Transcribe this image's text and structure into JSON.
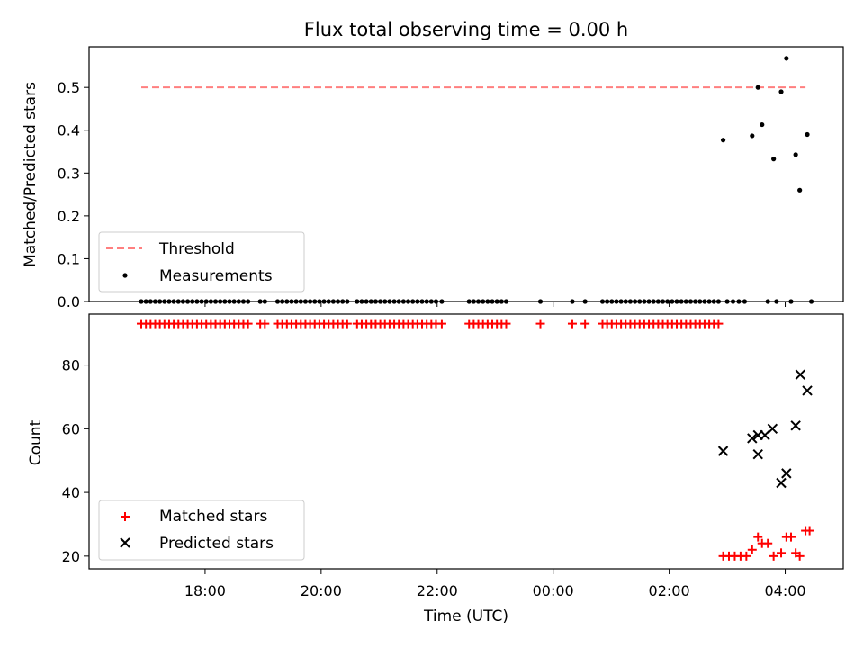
{
  "chart_data": [
    {
      "type": "scatter",
      "title": "Flux total observing time = 0.00 h",
      "ylabel": "Matched/Predicted stars",
      "ylim": [
        0,
        0.595
      ],
      "yticks": [
        0.0,
        0.1,
        0.2,
        0.3,
        0.4,
        0.5
      ],
      "ytick_labels": [
        "0.0",
        "0.1",
        "0.2",
        "0.3",
        "0.4",
        "0.5"
      ],
      "legend_position": "lower-left",
      "threshold": {
        "name": "Threshold",
        "color": "#ff7f7f",
        "style": "dashed",
        "y": 0.5,
        "x_start": 16.9,
        "x_end": 28.35
      },
      "series": [
        {
          "name": "Measurements",
          "color": "#000000",
          "marker": "dot",
          "points": [
            [
              16.9,
              0
            ],
            [
              16.98,
              0
            ],
            [
              17.06,
              0
            ],
            [
              17.14,
              0
            ],
            [
              17.22,
              0
            ],
            [
              17.3,
              0
            ],
            [
              17.38,
              0
            ],
            [
              17.46,
              0
            ],
            [
              17.54,
              0
            ],
            [
              17.62,
              0
            ],
            [
              17.7,
              0
            ],
            [
              17.78,
              0
            ],
            [
              17.86,
              0
            ],
            [
              17.94,
              0
            ],
            [
              18.02,
              0
            ],
            [
              18.1,
              0
            ],
            [
              18.18,
              0
            ],
            [
              18.26,
              0
            ],
            [
              18.34,
              0
            ],
            [
              18.42,
              0
            ],
            [
              18.5,
              0
            ],
            [
              18.58,
              0
            ],
            [
              18.66,
              0
            ],
            [
              18.74,
              0
            ],
            [
              18.95,
              0
            ],
            [
              19.03,
              0
            ],
            [
              19.25,
              0
            ],
            [
              19.33,
              0
            ],
            [
              19.41,
              0
            ],
            [
              19.49,
              0
            ],
            [
              19.57,
              0
            ],
            [
              19.65,
              0
            ],
            [
              19.73,
              0
            ],
            [
              19.81,
              0
            ],
            [
              19.89,
              0
            ],
            [
              19.97,
              0
            ],
            [
              20.05,
              0
            ],
            [
              20.13,
              0
            ],
            [
              20.21,
              0
            ],
            [
              20.29,
              0
            ],
            [
              20.37,
              0
            ],
            [
              20.45,
              0
            ],
            [
              20.62,
              0
            ],
            [
              20.7,
              0
            ],
            [
              20.78,
              0
            ],
            [
              20.86,
              0
            ],
            [
              20.94,
              0
            ],
            [
              21.02,
              0
            ],
            [
              21.1,
              0
            ],
            [
              21.18,
              0
            ],
            [
              21.26,
              0
            ],
            [
              21.34,
              0
            ],
            [
              21.42,
              0
            ],
            [
              21.5,
              0
            ],
            [
              21.58,
              0
            ],
            [
              21.66,
              0
            ],
            [
              21.74,
              0
            ],
            [
              21.82,
              0
            ],
            [
              21.9,
              0
            ],
            [
              21.98,
              0
            ],
            [
              22.08,
              0
            ],
            [
              22.55,
              0
            ],
            [
              22.63,
              0
            ],
            [
              22.71,
              0
            ],
            [
              22.79,
              0
            ],
            [
              22.87,
              0
            ],
            [
              22.95,
              0
            ],
            [
              23.03,
              0
            ],
            [
              23.11,
              0
            ],
            [
              23.19,
              0
            ],
            [
              23.78,
              0
            ],
            [
              24.33,
              0
            ],
            [
              24.55,
              0
            ],
            [
              24.85,
              0
            ],
            [
              24.93,
              0
            ],
            [
              25.01,
              0
            ],
            [
              25.09,
              0
            ],
            [
              25.17,
              0
            ],
            [
              25.25,
              0
            ],
            [
              25.33,
              0
            ],
            [
              25.41,
              0
            ],
            [
              25.49,
              0
            ],
            [
              25.57,
              0
            ],
            [
              25.65,
              0
            ],
            [
              25.73,
              0
            ],
            [
              25.81,
              0
            ],
            [
              25.89,
              0
            ],
            [
              25.97,
              0
            ],
            [
              26.05,
              0
            ],
            [
              26.13,
              0
            ],
            [
              26.21,
              0
            ],
            [
              26.29,
              0
            ],
            [
              26.37,
              0
            ],
            [
              26.45,
              0
            ],
            [
              26.53,
              0
            ],
            [
              26.61,
              0
            ],
            [
              26.69,
              0
            ],
            [
              26.77,
              0
            ],
            [
              26.85,
              0
            ],
            [
              27.0,
              0
            ],
            [
              27.1,
              0
            ],
            [
              27.2,
              0
            ],
            [
              27.3,
              0
            ],
            [
              27.7,
              0
            ],
            [
              27.85,
              0
            ],
            [
              28.1,
              0
            ],
            [
              28.45,
              0
            ],
            [
              26.93,
              0.377
            ],
            [
              27.43,
              0.387
            ],
            [
              27.53,
              0.5
            ],
            [
              27.6,
              0.413
            ],
            [
              27.8,
              0.333
            ],
            [
              27.93,
              0.49
            ],
            [
              28.02,
              0.568
            ],
            [
              28.18,
              0.343
            ],
            [
              28.25,
              0.26
            ],
            [
              28.38,
              0.39
            ]
          ]
        }
      ]
    },
    {
      "type": "scatter",
      "ylabel": "Count",
      "xlabel": "Time (UTC)",
      "xlim": [
        16.0,
        29.0
      ],
      "ylim": [
        16.0,
        96.0
      ],
      "yticks": [
        20,
        40,
        60,
        80
      ],
      "ytick_labels": [
        "20",
        "40",
        "60",
        "80"
      ],
      "xticks": [
        18,
        20,
        22,
        24,
        26,
        28
      ],
      "xtick_labels": [
        "18:00",
        "20:00",
        "22:00",
        "00:00",
        "02:00",
        "04:00"
      ],
      "legend_position": "lower-left",
      "series": [
        {
          "name": "Matched stars",
          "color": "#ff0000",
          "marker": "plus",
          "points": [
            [
              16.9,
              93
            ],
            [
              16.98,
              93
            ],
            [
              17.06,
              93
            ],
            [
              17.14,
              93
            ],
            [
              17.22,
              93
            ],
            [
              17.3,
              93
            ],
            [
              17.38,
              93
            ],
            [
              17.46,
              93
            ],
            [
              17.54,
              93
            ],
            [
              17.62,
              93
            ],
            [
              17.7,
              93
            ],
            [
              17.78,
              93
            ],
            [
              17.86,
              93
            ],
            [
              17.94,
              93
            ],
            [
              18.02,
              93
            ],
            [
              18.1,
              93
            ],
            [
              18.18,
              93
            ],
            [
              18.26,
              93
            ],
            [
              18.34,
              93
            ],
            [
              18.42,
              93
            ],
            [
              18.5,
              93
            ],
            [
              18.58,
              93
            ],
            [
              18.66,
              93
            ],
            [
              18.74,
              93
            ],
            [
              18.95,
              93
            ],
            [
              19.03,
              93
            ],
            [
              19.25,
              93
            ],
            [
              19.33,
              93
            ],
            [
              19.41,
              93
            ],
            [
              19.49,
              93
            ],
            [
              19.57,
              93
            ],
            [
              19.65,
              93
            ],
            [
              19.73,
              93
            ],
            [
              19.81,
              93
            ],
            [
              19.89,
              93
            ],
            [
              19.97,
              93
            ],
            [
              20.05,
              93
            ],
            [
              20.13,
              93
            ],
            [
              20.21,
              93
            ],
            [
              20.29,
              93
            ],
            [
              20.37,
              93
            ],
            [
              20.45,
              93
            ],
            [
              20.62,
              93
            ],
            [
              20.7,
              93
            ],
            [
              20.78,
              93
            ],
            [
              20.86,
              93
            ],
            [
              20.94,
              93
            ],
            [
              21.02,
              93
            ],
            [
              21.1,
              93
            ],
            [
              21.18,
              93
            ],
            [
              21.26,
              93
            ],
            [
              21.34,
              93
            ],
            [
              21.42,
              93
            ],
            [
              21.5,
              93
            ],
            [
              21.58,
              93
            ],
            [
              21.66,
              93
            ],
            [
              21.74,
              93
            ],
            [
              21.82,
              93
            ],
            [
              21.9,
              93
            ],
            [
              21.98,
              93
            ],
            [
              22.08,
              93
            ],
            [
              22.55,
              93
            ],
            [
              22.63,
              93
            ],
            [
              22.71,
              93
            ],
            [
              22.79,
              93
            ],
            [
              22.87,
              93
            ],
            [
              22.95,
              93
            ],
            [
              23.03,
              93
            ],
            [
              23.11,
              93
            ],
            [
              23.19,
              93
            ],
            [
              23.78,
              93
            ],
            [
              24.33,
              93
            ],
            [
              24.55,
              93
            ],
            [
              24.85,
              93
            ],
            [
              24.93,
              93
            ],
            [
              25.01,
              93
            ],
            [
              25.09,
              93
            ],
            [
              25.17,
              93
            ],
            [
              25.25,
              93
            ],
            [
              25.33,
              93
            ],
            [
              25.41,
              93
            ],
            [
              25.49,
              93
            ],
            [
              25.57,
              93
            ],
            [
              25.65,
              93
            ],
            [
              25.73,
              93
            ],
            [
              25.81,
              93
            ],
            [
              25.89,
              93
            ],
            [
              25.97,
              93
            ],
            [
              26.05,
              93
            ],
            [
              26.13,
              93
            ],
            [
              26.21,
              93
            ],
            [
              26.29,
              93
            ],
            [
              26.37,
              93
            ],
            [
              26.45,
              93
            ],
            [
              26.53,
              93
            ],
            [
              26.61,
              93
            ],
            [
              26.69,
              93
            ],
            [
              26.77,
              93
            ],
            [
              26.85,
              93
            ],
            [
              26.93,
              20
            ],
            [
              27.03,
              20
            ],
            [
              27.13,
              20
            ],
            [
              27.23,
              20
            ],
            [
              27.33,
              20
            ],
            [
              27.43,
              22
            ],
            [
              27.53,
              26
            ],
            [
              27.6,
              24
            ],
            [
              27.7,
              24
            ],
            [
              27.8,
              20
            ],
            [
              27.93,
              21
            ],
            [
              28.02,
              26
            ],
            [
              28.1,
              26
            ],
            [
              28.18,
              21
            ],
            [
              28.25,
              20
            ],
            [
              28.35,
              28
            ],
            [
              28.42,
              28
            ]
          ]
        },
        {
          "name": "Predicted stars",
          "color": "#000000",
          "marker": "x",
          "points": [
            [
              26.93,
              53
            ],
            [
              27.43,
              57
            ],
            [
              27.53,
              52
            ],
            [
              27.53,
              58
            ],
            [
              27.65,
              58
            ],
            [
              27.78,
              60
            ],
            [
              27.93,
              43
            ],
            [
              28.02,
              46
            ],
            [
              28.18,
              61
            ],
            [
              28.26,
              77
            ],
            [
              28.38,
              72
            ]
          ]
        }
      ]
    }
  ]
}
